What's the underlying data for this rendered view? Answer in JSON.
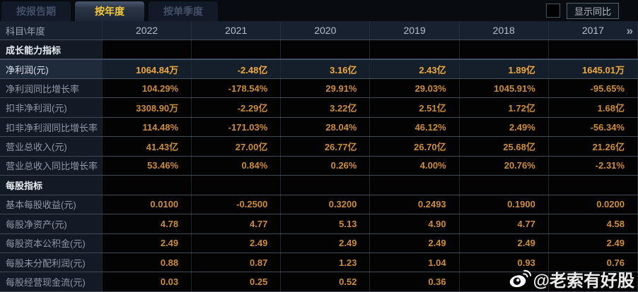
{
  "tabs": [
    {
      "id": "report-period",
      "label": "按报告期",
      "active": false
    },
    {
      "id": "annual",
      "label": "按年度",
      "active": true
    },
    {
      "id": "quarterly",
      "label": "按单季度",
      "active": false
    }
  ],
  "controls": {
    "show_yoy_label": "显示同比",
    "checkbox_checked": false
  },
  "table": {
    "corner_label": "科目\\年度",
    "years": [
      "2022",
      "2021",
      "2020",
      "2019",
      "2018",
      "2017"
    ],
    "more_icon": "»",
    "rows": [
      {
        "label": "成长能力指标",
        "type": "section",
        "values": [
          "",
          "",
          "",
          "",
          "",
          ""
        ]
      },
      {
        "label": "净利润(元)",
        "type": "highlight",
        "values": [
          "1064.84万",
          "-2.48亿",
          "3.16亿",
          "2.43亿",
          "1.89亿",
          "1645.01万"
        ]
      },
      {
        "label": "净利润同比增长率",
        "type": "data",
        "values": [
          "104.29%",
          "-178.54%",
          "29.91%",
          "29.03%",
          "1045.91%",
          "-95.65%"
        ]
      },
      {
        "label": "扣非净利润(元)",
        "type": "data",
        "values": [
          "3308.90万",
          "-2.29亿",
          "3.22亿",
          "2.51亿",
          "1.72亿",
          "1.68亿"
        ]
      },
      {
        "label": "扣非净利润同比增长率",
        "type": "data",
        "values": [
          "114.48%",
          "-171.03%",
          "28.04%",
          "46.12%",
          "2.49%",
          "-56.34%"
        ]
      },
      {
        "label": "营业总收入(元)",
        "type": "data",
        "values": [
          "41.43亿",
          "27.00亿",
          "26.77亿",
          "26.70亿",
          "25.68亿",
          "21.26亿"
        ]
      },
      {
        "label": "营业总收入同比增长率",
        "type": "data",
        "values": [
          "53.46%",
          "0.84%",
          "0.26%",
          "4.00%",
          "20.76%",
          "-2.31%"
        ]
      },
      {
        "label": "每股指标",
        "type": "section",
        "values": [
          "",
          "",
          "",
          "",
          "",
          ""
        ]
      },
      {
        "label": "基本每股收益(元)",
        "type": "data",
        "values": [
          "0.0100",
          "-0.2500",
          "0.3200",
          "0.2493",
          "0.1900",
          "0.0200"
        ]
      },
      {
        "label": "每股净资产(元)",
        "type": "data",
        "values": [
          "4.78",
          "4.77",
          "5.13",
          "4.90",
          "4.77",
          "4.58"
        ]
      },
      {
        "label": "每股资本公积金(元)",
        "type": "data",
        "values": [
          "2.49",
          "2.49",
          "2.49",
          "2.49",
          "2.49",
          "2.49"
        ]
      },
      {
        "label": "每股未分配利润(元)",
        "type": "data",
        "values": [
          "0.88",
          "0.87",
          "1.23",
          "1.04",
          "0.93",
          "0.76"
        ]
      },
      {
        "label": "每股经营现金流(元)",
        "type": "data",
        "values": [
          "0.03",
          "0.25",
          "0.52",
          "0.36",
          "",
          ""
        ]
      }
    ]
  },
  "watermark": {
    "text": "@老索有好股"
  },
  "colors": {
    "accent_gold": "#f7c838",
    "value_orange": "#cd8d3e",
    "highlight_value_orange": "#f0a93c",
    "header_bg": "#17212f",
    "label_cell_bg": "#121a25",
    "data_cell_bg": "#030303",
    "highlight_row_bg": "#151f2b"
  }
}
